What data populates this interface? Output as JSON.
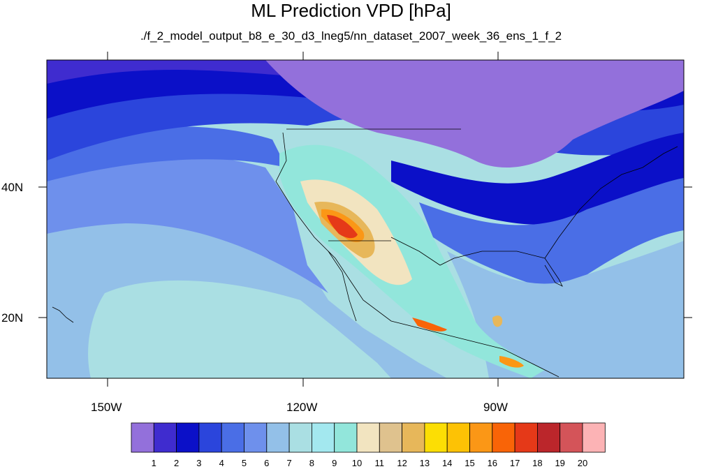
{
  "title": "ML Prediction VPD [hPa]",
  "subtitle": "./f_2_model_output_b8_e_30_d3_lneg5/nn_dataset_2007_week_36_ens_1_f_2",
  "axes": {
    "lon_labels": [
      "150W",
      "120W",
      "90W"
    ],
    "lat_labels": [
      "40N",
      "20N"
    ]
  },
  "colorbar": {
    "labels": [
      "1",
      "2",
      "3",
      "4",
      "5",
      "6",
      "7",
      "8",
      "9",
      "10",
      "11",
      "12",
      "13",
      "14",
      "15",
      "16",
      "17",
      "18",
      "19",
      "20"
    ],
    "colors": [
      "#9370db",
      "#3f2ccf",
      "#0b10c8",
      "#2b45dc",
      "#4a6ee6",
      "#6e90ec",
      "#93c0e8",
      "#aadfe3",
      "#a3e8ef",
      "#92e6db",
      "#f2e4c0",
      "#dfc28e",
      "#e7b75a",
      "#fcde04",
      "#fdc205",
      "#fb9716",
      "#f96407",
      "#e53918",
      "#bb262b",
      "#d45459",
      "#fcb3b5"
    ]
  },
  "map": {
    "lon_range": [
      -160,
      -62
    ],
    "lat_range": [
      11,
      60
    ]
  }
}
